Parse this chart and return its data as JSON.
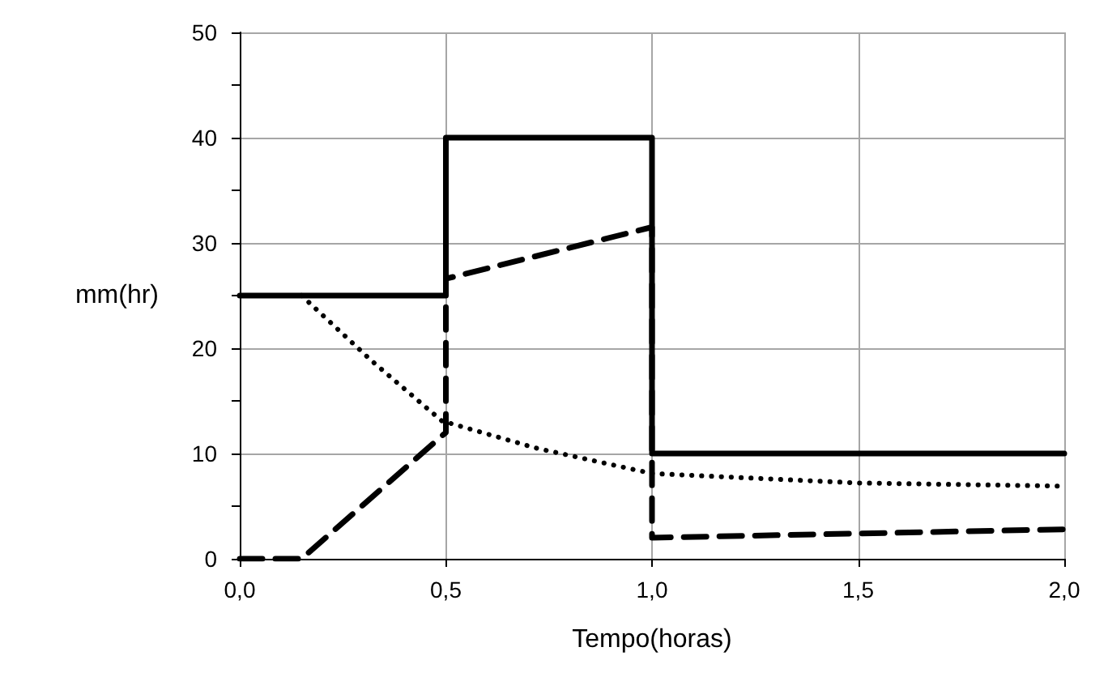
{
  "chart_data": {
    "type": "line",
    "xlabel": "Tempo(horas)",
    "ylabel": "mm(hr)",
    "xlim": [
      0,
      2
    ],
    "ylim": [
      0,
      50
    ],
    "xticks": [
      {
        "value": 0,
        "label": "0,0"
      },
      {
        "value": 0.5,
        "label": "0,5"
      },
      {
        "value": 1,
        "label": "1,0"
      },
      {
        "value": 1.5,
        "label": "1,5"
      },
      {
        "value": 2,
        "label": "2,0"
      }
    ],
    "yticks": [
      0,
      {
        "value": 5,
        "label": null
      },
      10,
      {
        "value": 15,
        "label": null
      },
      20,
      {
        "value": 25,
        "label": null
      },
      30,
      {
        "value": 35,
        "label": null
      },
      40,
      {
        "value": 45,
        "label": null
      },
      50
    ],
    "grid": true,
    "marker": "none",
    "series": [
      {
        "color": "#000000",
        "line_style": "solid",
        "x": [
          0,
          0.5,
          0.5,
          1,
          1,
          2
        ],
        "values": [
          25,
          25,
          40,
          40,
          10,
          10
        ]
      },
      {
        "color": "#000000",
        "line_style": "dashed",
        "x": [
          0,
          0.15,
          0.5,
          0.5,
          1,
          1,
          2
        ],
        "values": [
          0,
          0,
          12,
          26.6,
          31.5,
          2,
          2.8
        ]
      },
      {
        "color": "#000000",
        "line_style": "dotted",
        "x": [
          0.15,
          0.32,
          0.49,
          0.72,
          1,
          1.5,
          2
        ],
        "values": [
          25,
          18.8,
          13.1,
          10.5,
          8.1,
          7.2,
          6.9
        ]
      }
    ]
  }
}
